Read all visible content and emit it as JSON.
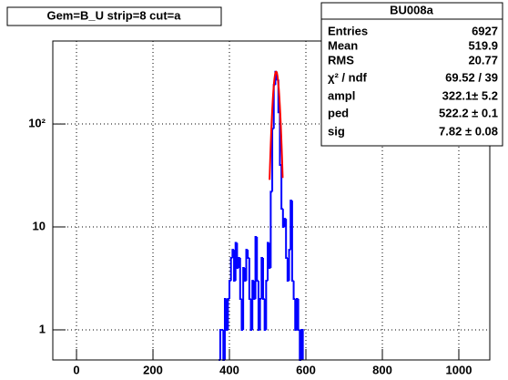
{
  "chart_data": {
    "type": "histogram",
    "title": "Gem=B_U strip=8 cut=a",
    "bins": [
      372,
      376,
      380,
      384,
      388,
      392,
      396,
      400,
      404,
      408,
      412,
      416,
      420,
      424,
      428,
      432,
      436,
      440,
      444,
      448,
      452,
      456,
      460,
      464,
      468,
      472,
      476,
      480,
      484,
      488,
      492,
      496,
      500,
      504,
      508,
      512,
      516,
      520,
      524,
      528,
      532,
      536,
      540,
      544,
      548,
      552,
      556,
      560,
      564,
      568,
      572,
      576,
      580,
      584,
      588,
      592
    ],
    "values": [
      0,
      1,
      1,
      0,
      2,
      1,
      2,
      3,
      5,
      6,
      3,
      7,
      4,
      5,
      2,
      1,
      4,
      3,
      6,
      5,
      2,
      1,
      3,
      2,
      8,
      3,
      1,
      2,
      5,
      2,
      1,
      3,
      7,
      4,
      22,
      90,
      240,
      322,
      270,
      130,
      40,
      15,
      10,
      12,
      5,
      3,
      6,
      18,
      3,
      2,
      1,
      2,
      1,
      0,
      1
    ],
    "color": "#0000ff",
    "fit_color": "#ff0000",
    "log_y": true,
    "grid": true,
    "xlim": [
      -62,
      1081
    ],
    "ylim": [
      0.51,
      640
    ],
    "xticks": [
      0,
      200,
      400,
      600,
      800,
      1000
    ],
    "yticks": [
      1,
      10,
      {
        "value": 100,
        "label": "10²"
      }
    ],
    "stats": {
      "name": "BU008a",
      "rows": [
        {
          "label": "Entries",
          "value_label": "6927"
        },
        {
          "label": "Mean",
          "value_label": "519.9"
        },
        {
          "label": "RMS",
          "value_label": "20.77"
        },
        {
          "label": "χ² / ndf",
          "value_label": "69.52 / 39"
        },
        {
          "label": "ampl",
          "value": 322.1,
          "error": 5.2,
          "value_label": "322.1± 5.2"
        },
        {
          "label": "ped",
          "value": 522.2,
          "error": 0.1,
          "value_label": "522.2 ± 0.1"
        },
        {
          "label": "sig",
          "value": 7.82,
          "error": 0.08,
          "value_label": "7.82 ± 0.08"
        }
      ]
    }
  }
}
